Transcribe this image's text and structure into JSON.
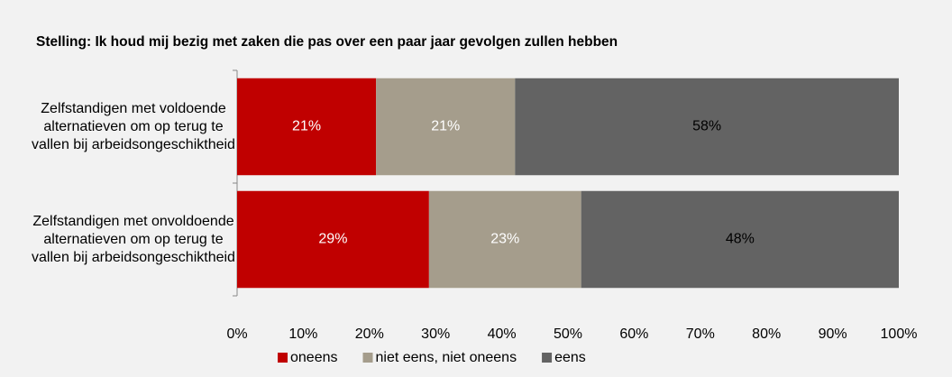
{
  "chart_data": {
    "type": "bar",
    "orientation": "horizontal",
    "stacked": true,
    "title": "Stelling: Ik houd mij bezig met zaken die pas over een paar jaar gevolgen zullen hebben",
    "categories": [
      "Zelfstandigen met voldoende alternatieven om op terug te vallen bij arbeidsongeschiktheid",
      "Zelfstandigen met onvoldoende alternatieven om op terug te vallen bij arbeidsongeschiktheid"
    ],
    "series": [
      {
        "name": "oneens",
        "color": "#c00000",
        "label_color": "#ffffff",
        "values": [
          21,
          29
        ],
        "value_labels": [
          "21%",
          "29%"
        ]
      },
      {
        "name": "niet eens, niet oneens",
        "color": "#a59d8c",
        "label_color": "#ffffff",
        "values": [
          21,
          23
        ],
        "value_labels": [
          "21%",
          "23%"
        ]
      },
      {
        "name": "eens",
        "color": "#636363",
        "label_color": "#000000",
        "values": [
          58,
          48
        ],
        "value_labels": [
          "58%",
          "48%"
        ]
      }
    ],
    "xlim": [
      0,
      100
    ],
    "xticks": [
      {
        "value": 0,
        "label": "0%"
      },
      {
        "value": 10,
        "label": "10%"
      },
      {
        "value": 20,
        "label": "20%"
      },
      {
        "value": 30,
        "label": "30%"
      },
      {
        "value": 40,
        "label": "40%"
      },
      {
        "value": 50,
        "label": "50%"
      },
      {
        "value": 60,
        "label": "60%"
      },
      {
        "value": 70,
        "label": "70%"
      },
      {
        "value": 80,
        "label": "80%"
      },
      {
        "value": 90,
        "label": "90%"
      },
      {
        "value": 100,
        "label": "100%"
      }
    ],
    "legend": "bottom"
  }
}
